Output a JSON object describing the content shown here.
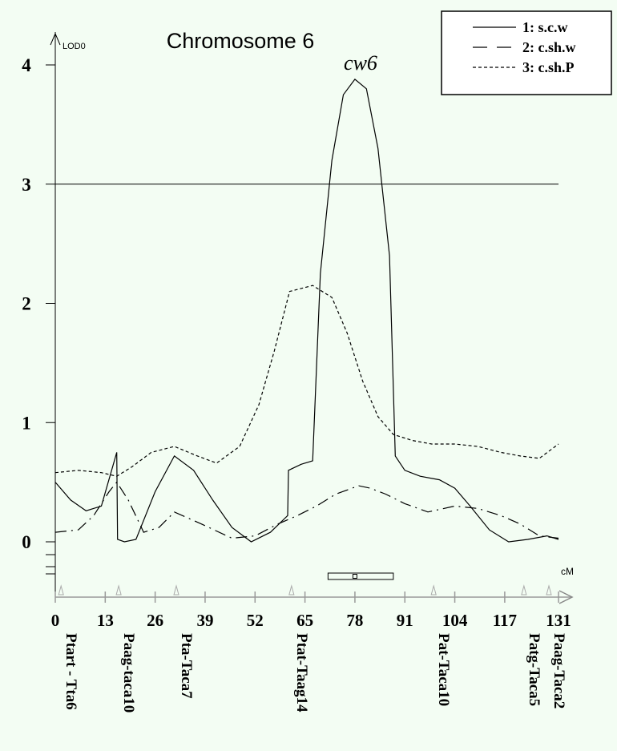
{
  "chart_data": {
    "type": "line",
    "title": "Chromosome 6",
    "ylabel": "LOD0",
    "xlabel": "cM",
    "ylim": [
      0,
      4
    ],
    "xlim": [
      0,
      131
    ],
    "y_ticks": [
      "0",
      "1",
      "2",
      "3",
      "4"
    ],
    "x_ticks": [
      "0",
      "13",
      "26",
      "39",
      "52",
      "65",
      "78",
      "91",
      "104",
      "117",
      "131"
    ],
    "threshold": 3,
    "annotation": {
      "label": "cw6",
      "x": 78,
      "y": 3.9
    },
    "confidence_interval": [
      71,
      88
    ],
    "markers": [
      {
        "name": "Ptart - Tta6",
        "pos": 1.5
      },
      {
        "name": "Paag-taca10",
        "pos": 16.5
      },
      {
        "name": "Pta-Taca7",
        "pos": 31.5
      },
      {
        "name": "Ptat-Taag14",
        "pos": 61.5
      },
      {
        "name": "Pat-Taca10",
        "pos": 98.5
      },
      {
        "name": "Patg-Taca5",
        "pos": 122
      },
      {
        "name": "Paag-Taca2",
        "pos": 128.5
      }
    ],
    "series": [
      {
        "name": "1: s.c.w",
        "dash": "solid",
        "x": [
          0,
          4,
          8,
          12,
          16,
          16.2,
          18,
          21,
          26,
          31,
          36,
          41,
          46,
          51,
          56,
          60.5,
          60.7,
          64,
          67,
          69,
          72,
          75,
          78,
          81,
          84,
          87,
          88.5,
          91,
          95,
          100,
          104,
          108,
          113,
          118,
          123,
          128,
          131
        ],
        "y": [
          0.5,
          0.35,
          0.26,
          0.3,
          0.75,
          0.02,
          0.0,
          0.02,
          0.42,
          0.72,
          0.6,
          0.35,
          0.12,
          0.0,
          0.08,
          0.22,
          0.6,
          0.65,
          0.68,
          2.25,
          3.2,
          3.75,
          3.88,
          3.8,
          3.3,
          2.4,
          0.72,
          0.6,
          0.55,
          0.52,
          0.45,
          0.3,
          0.1,
          0.0,
          0.02,
          0.05,
          0.02
        ]
      },
      {
        "name": "2: c.sh.w",
        "dash": "long-dash",
        "x": [
          0,
          6,
          10,
          14,
          16,
          19,
          23,
          27,
          31,
          38,
          46,
          52,
          58,
          63,
          68,
          73,
          79,
          82,
          86,
          91,
          97,
          104,
          110,
          116,
          121,
          126,
          131
        ],
        "y": [
          0.08,
          0.1,
          0.22,
          0.42,
          0.5,
          0.35,
          0.08,
          0.12,
          0.25,
          0.15,
          0.03,
          0.05,
          0.15,
          0.22,
          0.3,
          0.4,
          0.47,
          0.45,
          0.4,
          0.32,
          0.25,
          0.3,
          0.28,
          0.22,
          0.15,
          0.05,
          0.03
        ]
      },
      {
        "name": "3: c.sh.P",
        "dash": "short-dash",
        "x": [
          0,
          6,
          12,
          16,
          20,
          25,
          31,
          37,
          42,
          48,
          53,
          57,
          61,
          67,
          72,
          76,
          80,
          84,
          88,
          93,
          98,
          104,
          110,
          116,
          121,
          126,
          131
        ],
        "y": [
          0.58,
          0.6,
          0.58,
          0.55,
          0.63,
          0.75,
          0.8,
          0.72,
          0.66,
          0.8,
          1.15,
          1.6,
          2.1,
          2.15,
          2.05,
          1.75,
          1.35,
          1.05,
          0.9,
          0.85,
          0.82,
          0.82,
          0.8,
          0.75,
          0.72,
          0.7,
          0.82
        ]
      }
    ],
    "legend": {
      "placement": "top-right",
      "entries": [
        "1: s.c.w",
        "2: c.sh.w",
        "3: c.sh.P"
      ]
    }
  }
}
